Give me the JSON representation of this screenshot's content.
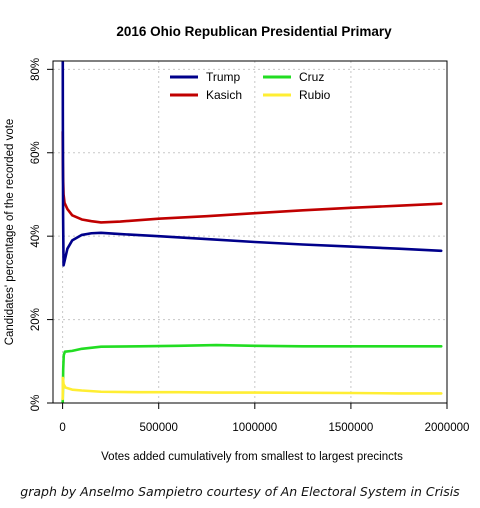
{
  "chart_data": {
    "type": "line",
    "title": "2016 Ohio Republican Presidential Primary",
    "xlabel": "Votes added cumulatively from smallest to largest precincts",
    "ylabel": "Candidates' percentage of the recorded vote",
    "xlim": [
      -50000,
      2000000
    ],
    "ylim": [
      0,
      82
    ],
    "x_ticks": [
      0,
      500000,
      1000000,
      1500000,
      2000000
    ],
    "x_tick_labels": [
      "0",
      "500000",
      "1000000",
      "1500000",
      "2000000"
    ],
    "y_ticks": [
      0,
      20,
      40,
      60,
      80
    ],
    "y_tick_labels": [
      "0%",
      "20%",
      "40%",
      "60%",
      "80%"
    ],
    "grid": true,
    "legend_position": "top-center",
    "series": [
      {
        "name": "Trump",
        "color": "#00008b",
        "points": [
          [
            500,
            95
          ],
          [
            1200,
            70
          ],
          [
            2500,
            45
          ],
          [
            5000,
            33
          ],
          [
            10000,
            34
          ],
          [
            25000,
            37
          ],
          [
            50000,
            39
          ],
          [
            100000,
            40.3
          ],
          [
            150000,
            40.7
          ],
          [
            200000,
            40.8
          ],
          [
            300000,
            40.5
          ],
          [
            500000,
            40
          ],
          [
            750000,
            39.3
          ],
          [
            1000000,
            38.6
          ],
          [
            1250000,
            38
          ],
          [
            1500000,
            37.5
          ],
          [
            1750000,
            37
          ],
          [
            1970000,
            36.5
          ]
        ]
      },
      {
        "name": "Kasich",
        "color": "#c00000",
        "points": [
          [
            500,
            65
          ],
          [
            1200,
            58
          ],
          [
            2500,
            54
          ],
          [
            5000,
            50
          ],
          [
            10000,
            48
          ],
          [
            25000,
            46.5
          ],
          [
            50000,
            45
          ],
          [
            100000,
            44
          ],
          [
            150000,
            43.6
          ],
          [
            200000,
            43.3
          ],
          [
            300000,
            43.5
          ],
          [
            500000,
            44.2
          ],
          [
            750000,
            44.8
          ],
          [
            1000000,
            45.5
          ],
          [
            1250000,
            46.2
          ],
          [
            1500000,
            46.8
          ],
          [
            1750000,
            47.3
          ],
          [
            1970000,
            47.8
          ]
        ]
      },
      {
        "name": "Cruz",
        "color": "#22dd22",
        "points": [
          [
            500,
            0
          ],
          [
            1500,
            3
          ],
          [
            3000,
            8
          ],
          [
            6000,
            11.5
          ],
          [
            12000,
            12.3
          ],
          [
            50000,
            12.5
          ],
          [
            100000,
            13
          ],
          [
            200000,
            13.5
          ],
          [
            400000,
            13.6
          ],
          [
            600000,
            13.7
          ],
          [
            800000,
            13.9
          ],
          [
            1000000,
            13.7
          ],
          [
            1250000,
            13.6
          ],
          [
            1500000,
            13.6
          ],
          [
            1750000,
            13.6
          ],
          [
            1970000,
            13.6
          ]
        ]
      },
      {
        "name": "Rubio",
        "color": "#ffee33",
        "points": [
          [
            500,
            1
          ],
          [
            1500,
            6
          ],
          [
            5000,
            4.5
          ],
          [
            15000,
            3.7
          ],
          [
            50000,
            3.2
          ],
          [
            100000,
            3
          ],
          [
            200000,
            2.7
          ],
          [
            400000,
            2.6
          ],
          [
            600000,
            2.6
          ],
          [
            800000,
            2.5
          ],
          [
            1000000,
            2.5
          ],
          [
            1500000,
            2.4
          ],
          [
            1750000,
            2.3
          ],
          [
            1970000,
            2.3
          ]
        ]
      }
    ]
  },
  "credit": "graph by Anselmo Sampietro courtesy of An Electoral System in Crisis"
}
